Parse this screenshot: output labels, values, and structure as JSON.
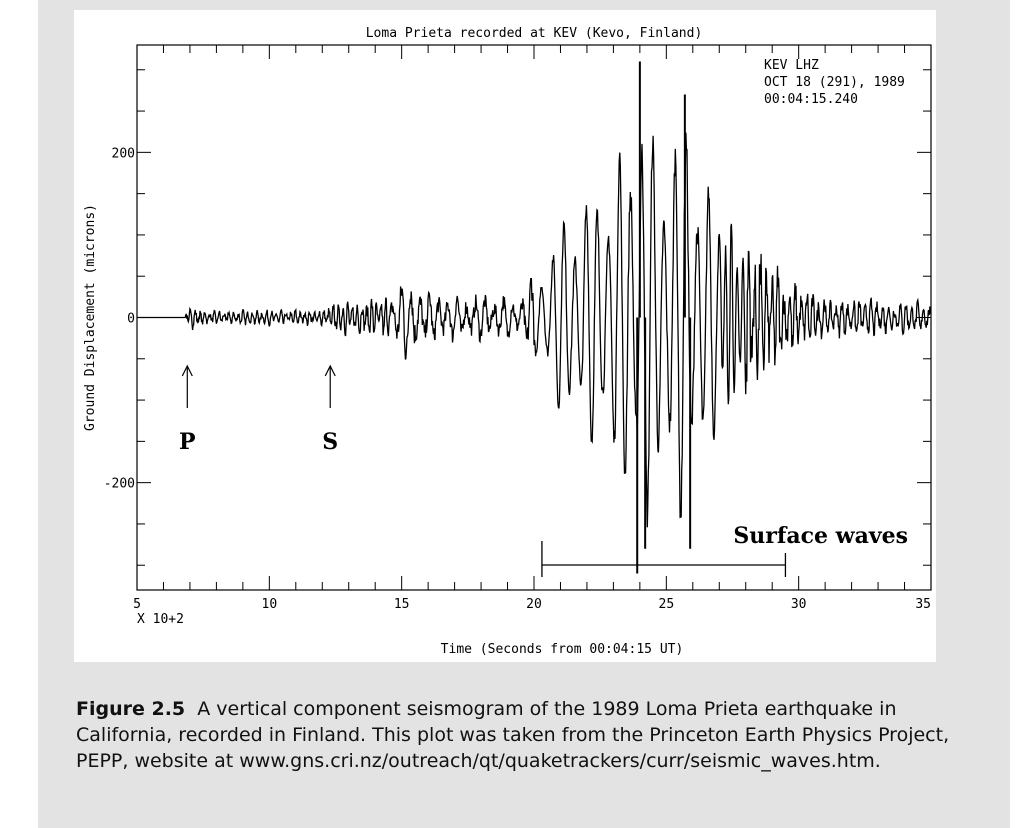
{
  "chart_data": {
    "type": "line",
    "title": "Loma Prieta recorded at KEV (Kevo, Finland)",
    "xlabel": "Time (Seconds from 00:04:15 UT)",
    "ylabel": "Ground Displacement (microns)",
    "x_multiplier_label": "X 10+2",
    "xlim": [
      5,
      35
    ],
    "ylim": [
      -330,
      330
    ],
    "x_ticks": [
      "5",
      "10",
      "15",
      "20",
      "25",
      "30",
      "35"
    ],
    "y_ticks": [
      "200",
      "0",
      "-200"
    ],
    "station_info": [
      "KEV  LHZ",
      "OCT 18 (291), 1989",
      "00:04:15.240"
    ],
    "annotations": [
      {
        "label": "P",
        "x": 6.9
      },
      {
        "label": "S",
        "x": 12.3
      }
    ],
    "surface_waves": {
      "label": "Surface waves",
      "x_start": 20.3,
      "x_end": 29.5
    },
    "series": [
      {
        "values_note": "",
        "envelope": [
          {
            "x": 5.0,
            "amp": 0
          },
          {
            "x": 6.8,
            "amp": 0
          },
          {
            "x": 6.9,
            "amp": 14
          },
          {
            "x": 7.5,
            "amp": 7
          },
          {
            "x": 12.0,
            "amp": 8
          },
          {
            "x": 12.5,
            "amp": 16
          },
          {
            "x": 14.5,
            "amp": 20
          },
          {
            "x": 15.2,
            "amp": 45
          },
          {
            "x": 16.0,
            "amp": 25
          },
          {
            "x": 19.5,
            "amp": 20
          },
          {
            "x": 20.2,
            "amp": 60
          },
          {
            "x": 21.0,
            "amp": 115
          },
          {
            "x": 22.5,
            "amp": 160
          },
          {
            "x": 23.5,
            "amp": 210
          },
          {
            "x": 24.0,
            "amp": 300
          },
          {
            "x": 24.6,
            "amp": 200
          },
          {
            "x": 25.8,
            "amp": 250
          },
          {
            "x": 26.5,
            "amp": 160
          },
          {
            "x": 28.0,
            "amp": 90
          },
          {
            "x": 29.5,
            "amp": 40
          },
          {
            "x": 31.0,
            "amp": 20
          },
          {
            "x": 35.0,
            "amp": 15
          }
        ],
        "spikes": [
          {
            "x": 23.9,
            "y": -310
          },
          {
            "x": 24.0,
            "y": 310
          },
          {
            "x": 24.2,
            "y": -280
          },
          {
            "x": 25.9,
            "y": -280
          },
          {
            "x": 25.7,
            "y": 270
          }
        ]
      }
    ]
  },
  "caption": {
    "figure_label": "Figure 2.5",
    "text": "A vertical component seismogram of the 1989 Loma Prieta earthquake in California, recorded in Finland. This plot was taken from the Princeton Earth Physics Project, PEPP, website at www.gns.cri.nz/outreach/qt/quaketrackers/curr/seismic_waves.htm."
  }
}
